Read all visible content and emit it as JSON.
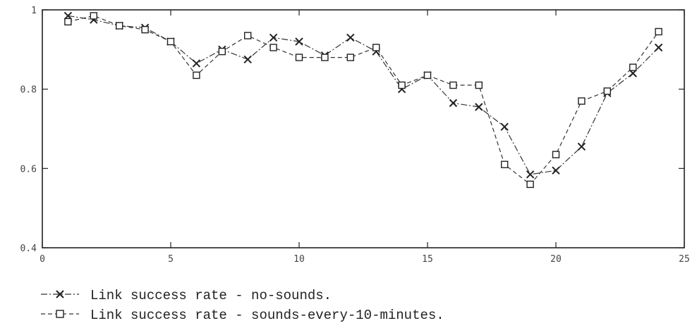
{
  "chart_data": {
    "type": "line",
    "xlim": [
      0,
      25
    ],
    "ylim": [
      0.4,
      1.0
    ],
    "x_ticks": [
      0,
      5,
      10,
      15,
      20,
      25
    ],
    "y_ticks": [
      0.4,
      0.6,
      0.8,
      1.0
    ],
    "x_tick_labels": [
      "0",
      "5",
      "10",
      "15",
      "20",
      "25"
    ],
    "y_tick_labels": [
      "0.4",
      "0.6",
      "0.8",
      "1"
    ],
    "grid": false,
    "legend_position": "bottom-left",
    "series": [
      {
        "name": "Link success rate - no-sounds.",
        "marker": "x",
        "x": [
          1,
          2,
          3,
          4,
          5,
          6,
          7,
          8,
          9,
          10,
          11,
          12,
          13,
          14,
          15,
          16,
          17,
          18,
          19,
          20,
          21,
          22,
          23,
          24
        ],
        "values": [
          0.985,
          0.975,
          0.96,
          0.955,
          0.92,
          0.865,
          0.9,
          0.875,
          0.93,
          0.92,
          0.885,
          0.93,
          0.895,
          0.8,
          0.835,
          0.765,
          0.755,
          0.705,
          0.585,
          0.595,
          0.655,
          0.79,
          0.84,
          0.905
        ]
      },
      {
        "name": "Link success rate - sounds-every-10-minutes.",
        "marker": "square",
        "x": [
          1,
          2,
          3,
          4,
          5,
          6,
          7,
          8,
          9,
          10,
          11,
          12,
          13,
          14,
          15,
          16,
          17,
          18,
          19,
          20,
          21,
          22,
          23,
          24
        ],
        "values": [
          0.97,
          0.985,
          0.96,
          0.95,
          0.92,
          0.835,
          0.895,
          0.935,
          0.905,
          0.88,
          0.88,
          0.88,
          0.905,
          0.81,
          0.835,
          0.81,
          0.81,
          0.61,
          0.56,
          0.635,
          0.77,
          0.795,
          0.855,
          0.945
        ]
      }
    ]
  }
}
